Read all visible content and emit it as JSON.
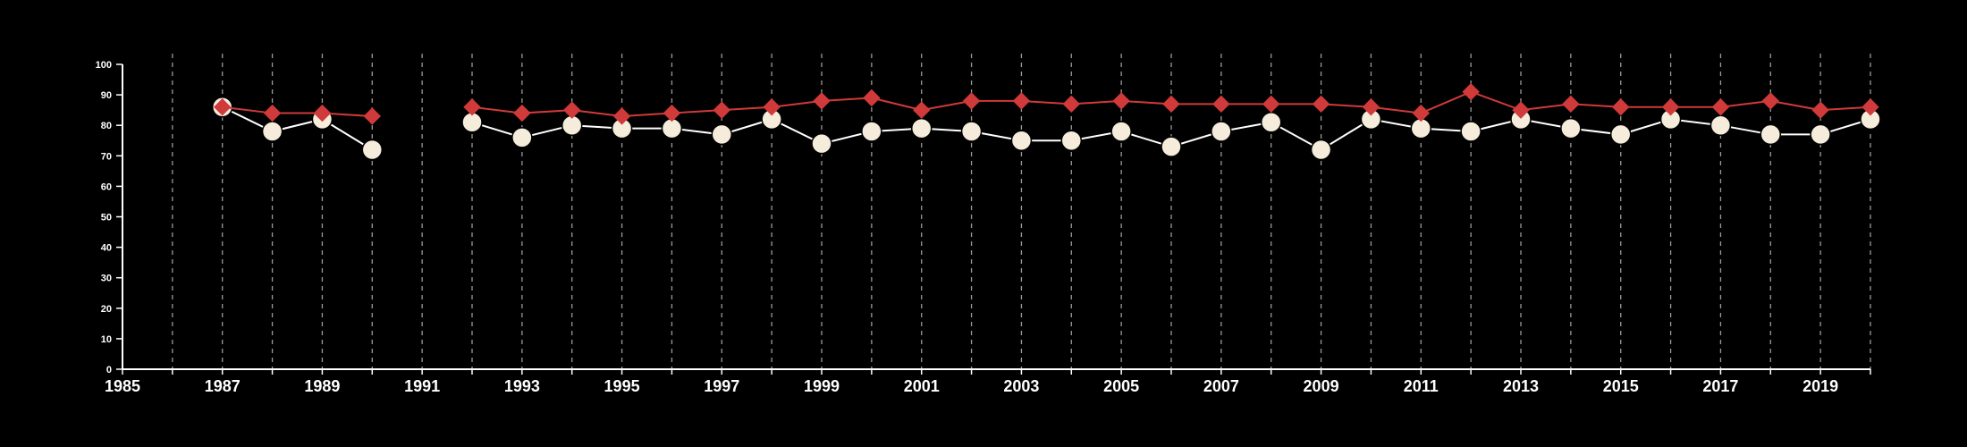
{
  "chart_data": {
    "type": "line",
    "title": "",
    "xlabel": "",
    "ylabel": "",
    "xlim": [
      1985,
      2020
    ],
    "ylim": [
      0,
      100
    ],
    "x_ticks": [
      "1985",
      "1987",
      "1989",
      "1991",
      "1993",
      "1995",
      "1997",
      "1999",
      "2001",
      "2003",
      "2005",
      "2007",
      "2009",
      "2011",
      "2013",
      "2015",
      "2017",
      "2019"
    ],
    "y_ticks": [
      "0",
      "10",
      "20",
      "30",
      "40",
      "50",
      "60",
      "70",
      "80",
      "90",
      "100"
    ],
    "grid": "vertical dashed lines at every year",
    "legend": "none",
    "series": [
      {
        "marker": "circle",
        "color": "#ffffff",
        "marker_color": "#f5ecdc",
        "points": [
          [
            1987,
            86
          ],
          [
            1988,
            78
          ],
          [
            1989,
            82
          ],
          [
            1990,
            72
          ],
          [
            1992,
            81
          ],
          [
            1993,
            76
          ],
          [
            1994,
            80
          ],
          [
            1995,
            79
          ],
          [
            1996,
            79
          ],
          [
            1997,
            77
          ],
          [
            1998,
            82
          ],
          [
            1999,
            74
          ],
          [
            2000,
            78
          ],
          [
            2001,
            79
          ],
          [
            2002,
            78
          ],
          [
            2003,
            75
          ],
          [
            2004,
            75
          ],
          [
            2005,
            78
          ],
          [
            2006,
            73
          ],
          [
            2007,
            78
          ],
          [
            2008,
            81
          ],
          [
            2009,
            72
          ],
          [
            2010,
            82
          ],
          [
            2011,
            79
          ],
          [
            2012,
            78
          ],
          [
            2013,
            82
          ],
          [
            2014,
            79
          ],
          [
            2015,
            77
          ],
          [
            2016,
            82
          ],
          [
            2017,
            80
          ],
          [
            2018,
            77
          ],
          [
            2019,
            77
          ],
          [
            2020,
            82
          ]
        ]
      },
      {
        "marker": "diamond",
        "color": "#d03a3a",
        "marker_color": "#d03a3a",
        "points": [
          [
            1987,
            86
          ],
          [
            1988,
            84
          ],
          [
            1989,
            84
          ],
          [
            1990,
            83
          ],
          [
            1992,
            86
          ],
          [
            1993,
            84
          ],
          [
            1994,
            85
          ],
          [
            1995,
            83
          ],
          [
            1996,
            84
          ],
          [
            1997,
            85
          ],
          [
            1998,
            86
          ],
          [
            1999,
            88
          ],
          [
            2000,
            89
          ],
          [
            2001,
            85
          ],
          [
            2002,
            88
          ],
          [
            2003,
            88
          ],
          [
            2004,
            87
          ],
          [
            2005,
            88
          ],
          [
            2006,
            87
          ],
          [
            2007,
            87
          ],
          [
            2008,
            87
          ],
          [
            2009,
            87
          ],
          [
            2010,
            86
          ],
          [
            2011,
            84
          ],
          [
            2012,
            91
          ],
          [
            2013,
            85
          ],
          [
            2014,
            87
          ],
          [
            2015,
            86
          ],
          [
            2016,
            86
          ],
          [
            2017,
            86
          ],
          [
            2018,
            88
          ],
          [
            2019,
            85
          ],
          [
            2020,
            86
          ]
        ]
      }
    ]
  }
}
